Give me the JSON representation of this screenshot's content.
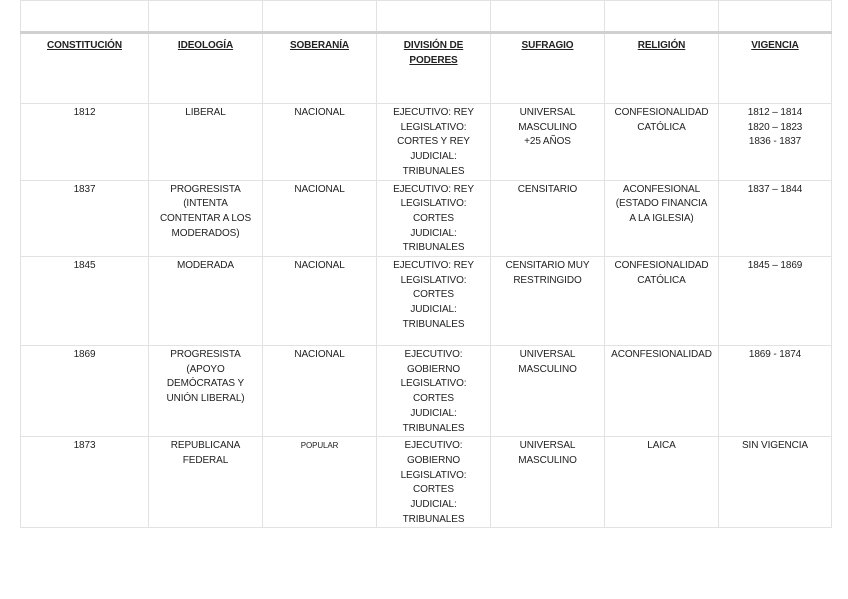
{
  "headers": [
    "CONSTITUCIÓN",
    "IDEOLOGÍA",
    "SOBERANÍA",
    "DIVISIÓN DE\nPODERES",
    "SUFRAGIO",
    "RELIGIÓN",
    "VIGENCIA"
  ],
  "rows": [
    [
      "1812",
      "LIBERAL",
      "NACIONAL",
      "EJECUTIVO: REY\nLEGISLATIVO:\nCORTES Y REY\nJUDICIAL:\nTRIBUNALES",
      "UNIVERSAL\nMASCULINO\n+25 AÑOS",
      "CONFESIONALIDAD\nCATÓLICA",
      "1812 – 1814\n1820 – 1823\n1836 - 1837"
    ],
    [
      "1837",
      "PROGRESISTA\n(INTENTA\nCONTENTAR A LOS\nMODERADOS)",
      "NACIONAL",
      "EJECUTIVO: REY\nLEGISLATIVO:\nCORTES\nJUDICIAL:\nTRIBUNALES",
      "CENSITARIO",
      "ACONFESIONAL\n(ESTADO FINANCIA\nA LA IGLESIA)",
      "1837 – 1844"
    ],
    [
      "1845",
      "MODERADA",
      "NACIONAL",
      "EJECUTIVO: REY\nLEGISLATIVO:\nCORTES\nJUDICIAL:\nTRIBUNALES",
      "CENSITARIO MUY\nRESTRINGIDO",
      "CONFESIONALIDAD\nCATÓLICA",
      "1845 – 1869"
    ],
    [
      "1869",
      "PROGRESISTA\n(APOYO\nDEMÓCRATAS Y\nUNIÓN LIBERAL)",
      "NACIONAL",
      "EJECUTIVO:\nGOBIERNO\nLEGISLATIVO:\nCORTES\nJUDICIAL:\nTRIBUNALES",
      "UNIVERSAL\nMASCULINO",
      "ACONFESIONALIDAD",
      "1869 - 1874"
    ],
    [
      "1873",
      "REPUBLICANA\nFEDERAL",
      "POPULAR",
      "EJECUTIVO:\nGOBIERNO\nLEGISLATIVO:\nCORTES\nJUDICIAL:\nTRIBUNALES",
      "UNIVERSAL\nMASCULINO",
      "LAICA",
      "SIN VIGENCIA"
    ]
  ]
}
